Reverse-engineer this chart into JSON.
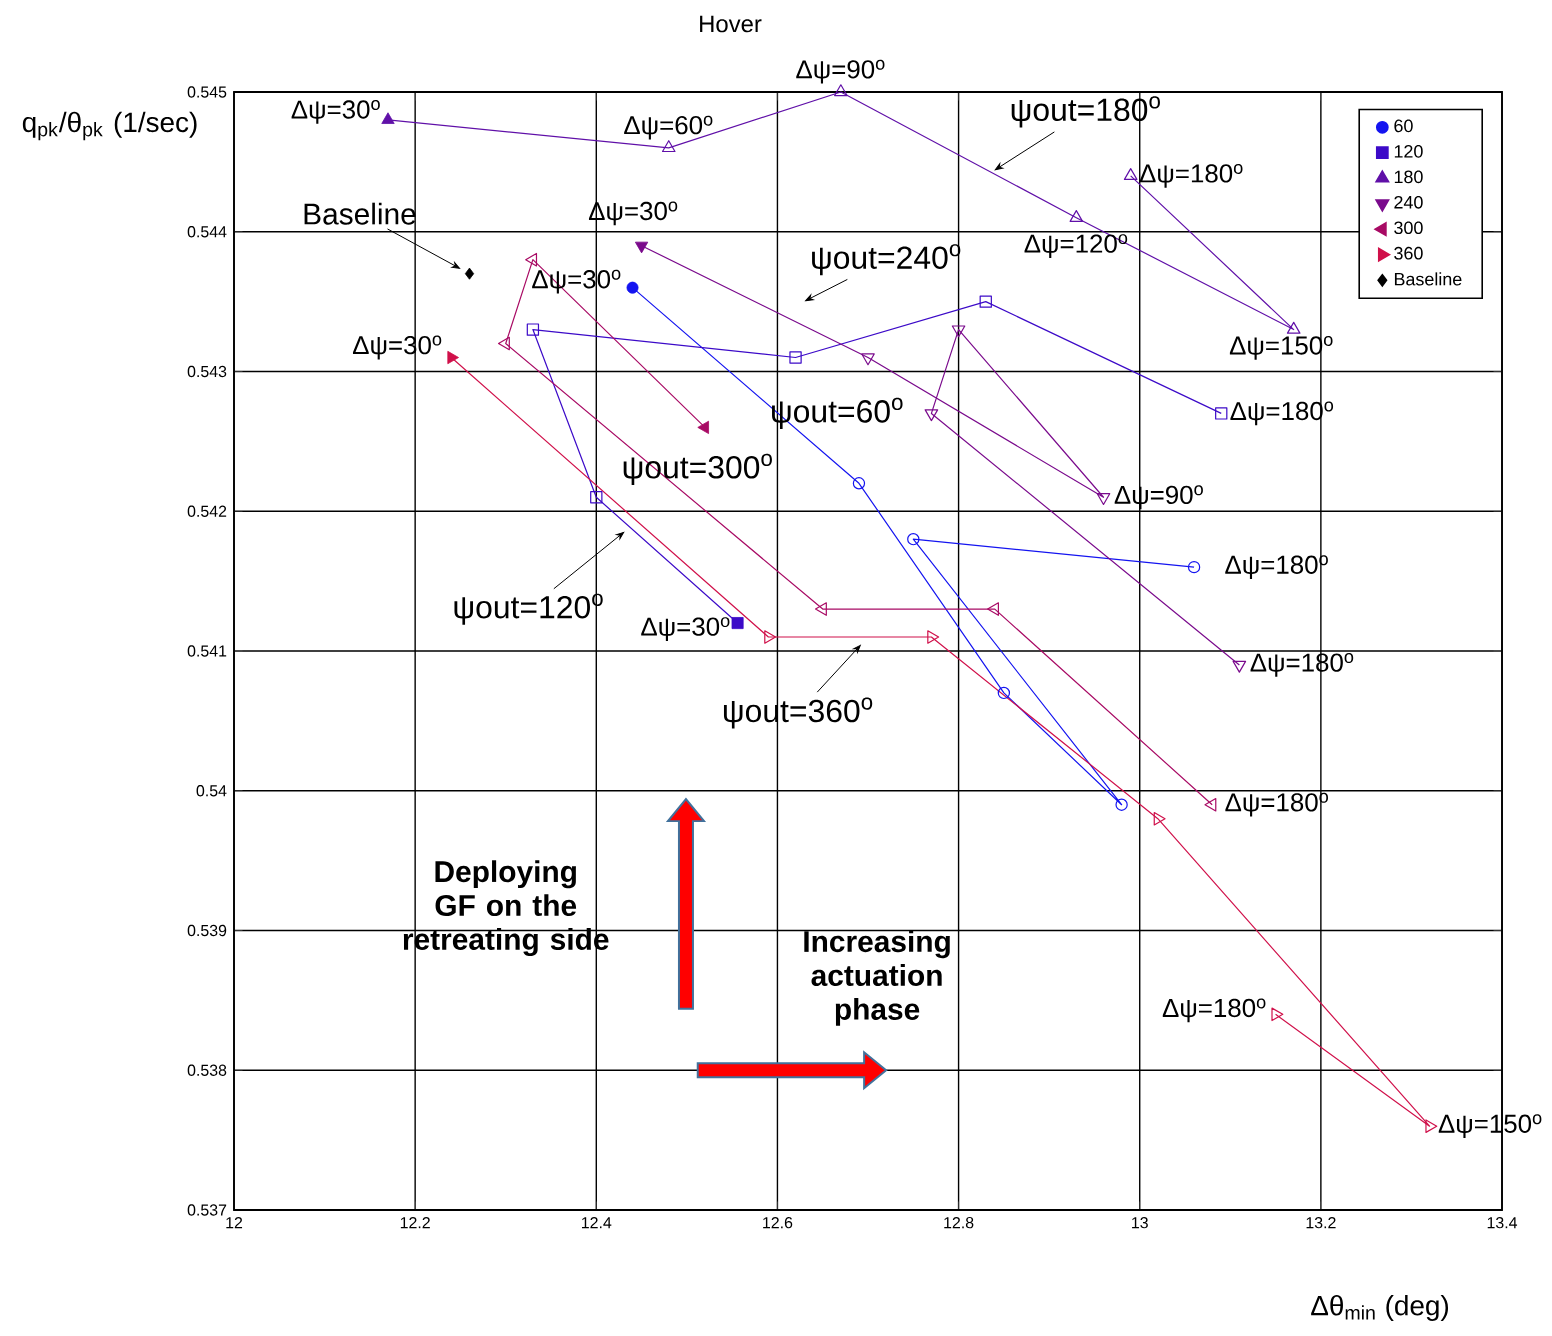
{
  "chart_data": {
    "type": "line",
    "title": "Hover",
    "xlabel": "Δθ$_{min}$ (deg)",
    "ylabel": "q$_{pk}$/θ$_{pk}$ (1/sec)",
    "xlim": [
      12,
      13.4
    ],
    "xticks": [
      12,
      12.2,
      12.4,
      12.6,
      12.8,
      13,
      13.2,
      13.4
    ],
    "ylim": [
      0.537,
      0.545
    ],
    "yticks": [
      0.537,
      0.538,
      0.539,
      0.54,
      0.541,
      0.542,
      0.543,
      0.544,
      0.545
    ],
    "grid": true,
    "legend": "top right",
    "line_style": "solid",
    "series": [
      {
        "name": "60",
        "color": "#1414f0",
        "marker": "circle",
        "x": [
          12.44,
          12.69,
          12.85,
          12.98,
          12.75,
          13.06
        ],
        "values": [
          0.5436,
          0.5422,
          0.5407,
          0.5399,
          0.5418,
          0.5416
        ]
      },
      {
        "name": "120",
        "color": "#3c0ac8",
        "marker": "square",
        "x": [
          12.556,
          12.4,
          12.33,
          12.62,
          12.83,
          13.09
        ],
        "values": [
          0.5412,
          0.5421,
          0.5433,
          0.5431,
          0.5435,
          0.5427
        ]
      },
      {
        "name": "180",
        "color": "#6010a8",
        "marker": "triangle",
        "x": [
          12.17,
          12.48,
          12.67,
          12.93,
          13.17,
          12.99
        ],
        "values": [
          0.5448,
          0.5446,
          0.545,
          0.5441,
          0.5433,
          0.5444
        ]
      },
      {
        "name": "240",
        "color": "#7a0a8c",
        "marker": "triangle-down",
        "x": [
          12.45,
          12.7,
          12.96,
          12.8,
          12.77,
          13.11
        ],
        "values": [
          0.5439,
          0.5431,
          0.5421,
          0.5433,
          0.5427,
          0.5409
        ]
      },
      {
        "name": "300",
        "color": "#a80a64",
        "marker": "triangle-left",
        "x": [
          12.52,
          12.33,
          12.3,
          12.65,
          12.84,
          13.08
        ],
        "values": [
          0.5426,
          0.5438,
          0.5432,
          0.5413,
          0.5413,
          0.5399
        ]
      },
      {
        "name": "360",
        "color": "#d0104a",
        "marker": "triangle-right",
        "x": [
          12.24,
          12.59,
          12.77,
          13.02,
          13.32,
          13.15
        ],
        "values": [
          0.5431,
          0.5411,
          0.5411,
          0.5398,
          0.5376,
          0.5384
        ]
      },
      {
        "name": "Baseline",
        "type": "scatter",
        "color": "#000000",
        "marker": "diamond",
        "x": [
          12.26
        ],
        "values": [
          0.5437
        ]
      }
    ],
    "annotations": [
      {
        "text": "Δψ=30$^{o}$",
        "x": 12.17,
        "y": 0.5448
      },
      {
        "text": "Δψ=60$^{o}$",
        "x": 12.48,
        "y": 0.5446
      },
      {
        "text": "Δψ=90$^{o}$",
        "x": 12.67,
        "y": 0.545
      },
      {
        "text": "Δψ=120$^{o}$",
        "x": 12.93,
        "y": 0.5441
      },
      {
        "text": "Δψ=180$^{o}$",
        "x": 12.99,
        "y": 0.5444
      },
      {
        "text": "Δψ=150$^{o}$",
        "x": 13.17,
        "y": 0.5433
      },
      {
        "text": "Δψ=30$^{o}$",
        "x": 12.45,
        "y": 0.5439
      },
      {
        "text": "Δψ=90$^{o}$",
        "x": 12.96,
        "y": 0.5421
      },
      {
        "text": "Δψ=180$^{o}$",
        "x": 13.11,
        "y": 0.5409
      },
      {
        "text": "Δψ=30$^{o}$",
        "x": 12.44,
        "y": 0.5436
      },
      {
        "text": "Δψ=180$^{o}$",
        "x": 13.06,
        "y": 0.5416
      },
      {
        "text": "Δψ=30$^{o}$",
        "x": 12.556,
        "y": 0.5412
      },
      {
        "text": "Δψ=180$^{o}$",
        "x": 13.09,
        "y": 0.5427
      },
      {
        "text": "Δψ=180$^{o}$",
        "x": 13.08,
        "y": 0.5399
      },
      {
        "text": "Δψ=30$^{o}$",
        "x": 12.24,
        "y": 0.5431
      },
      {
        "text": "Δψ=150$^{o}$",
        "x": 13.32,
        "y": 0.5376
      },
      {
        "text": "Δψ=180$^{o}$",
        "x": 13.15,
        "y": 0.5384
      },
      {
        "text": "Baseline",
        "x": 12.26,
        "y": 0.5437
      },
      {
        "text": "ψout=180$^{o}$",
        "x": 12.83,
        "y": 0.5444
      },
      "ψout=240$^{o}$",
      "ψout=60$^{o}$",
      "ψout=300$^{o}$",
      {
        "text": "ψout=120$^{o}$",
        "x": 12.44,
        "y": 0.5419
      },
      {
        "text": "ψout=360$^{o}$",
        "x": 12.7,
        "y": 0.5411
      },
      "Deploying GF on the retreating side",
      "Increasing actuation phase"
    ]
  }
}
